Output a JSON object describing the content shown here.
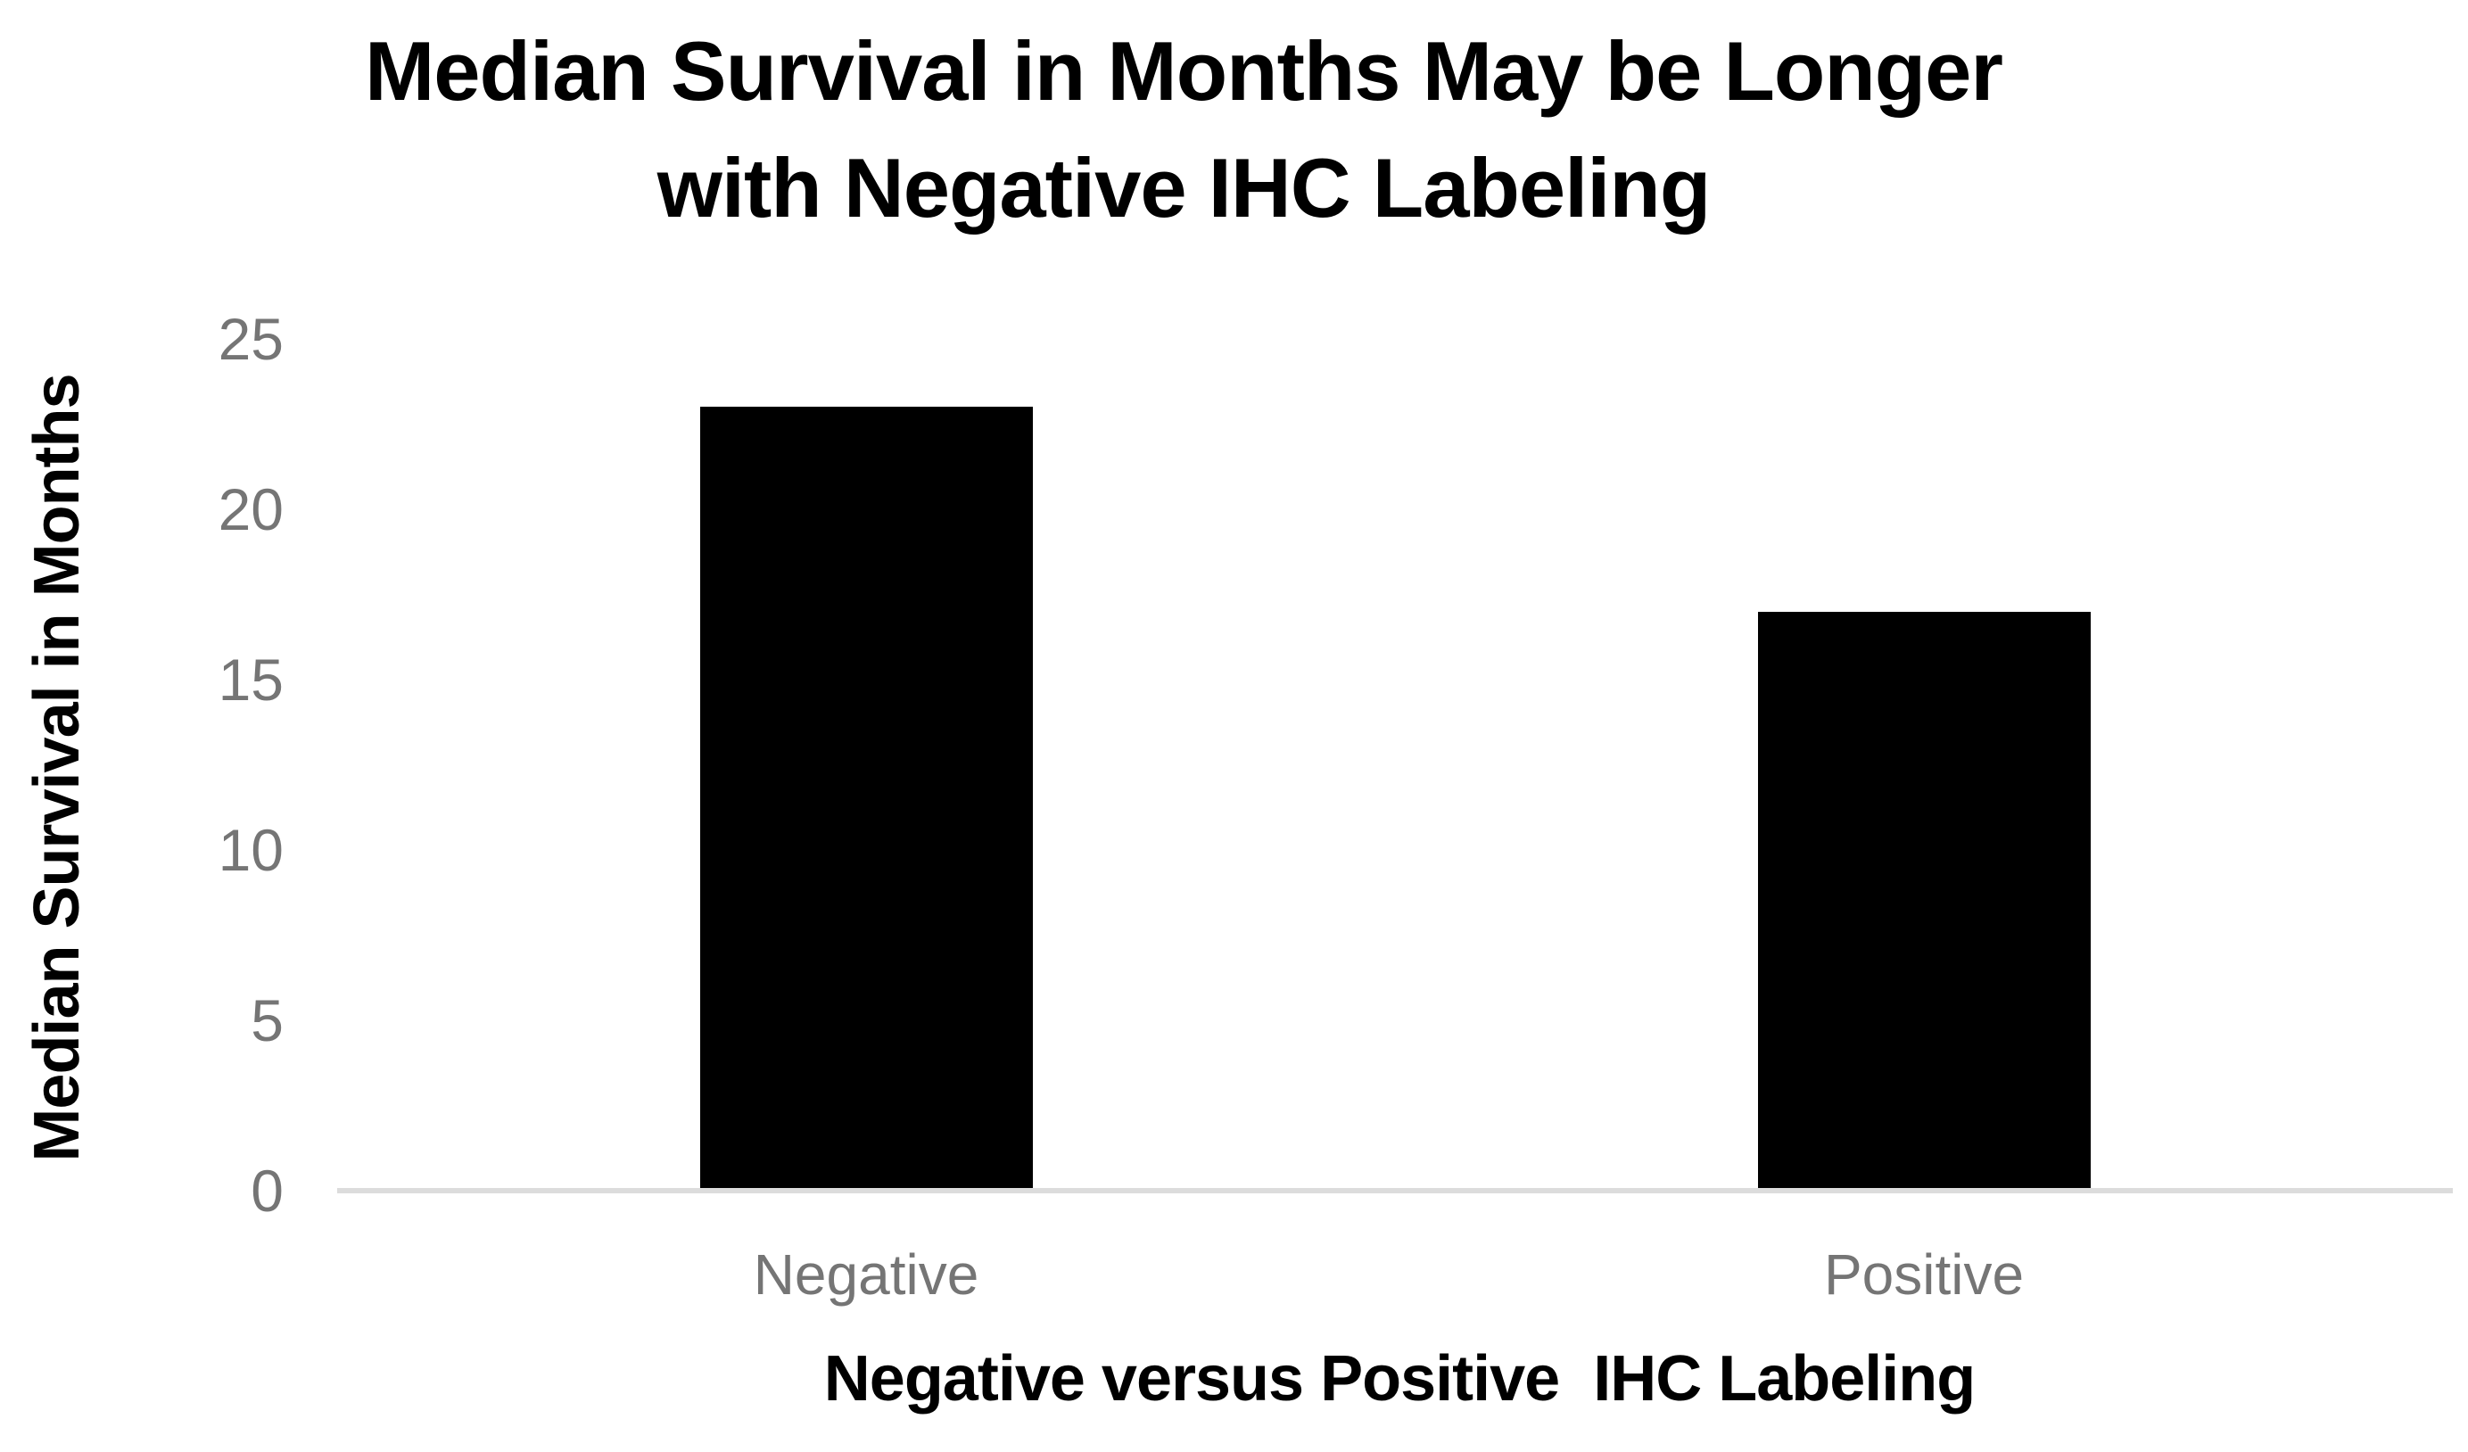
{
  "chart_data": {
    "type": "bar",
    "title": "Median Survival in Months May be Longer with Negative IHC Labeling",
    "title_lines": [
      "Median Survival in Months May be Longer",
      "with Negative IHC Labeling"
    ],
    "categories": [
      "Negative",
      "Positive"
    ],
    "values": [
      23,
      17
    ],
    "series": [
      {
        "name": "Median Survival in Months",
        "values": [
          23,
          17
        ]
      }
    ],
    "xlabel": "Negative versus Positive  IHC Labeling",
    "ylabel": "Median Survival in Months",
    "ylim": [
      0,
      25
    ],
    "yticks": [
      25,
      20,
      15,
      10,
      5,
      0
    ],
    "grid": false,
    "legend": false,
    "colors": {
      "bar": "#000000",
      "title_text": "#000000",
      "axis_title_text": "#000000",
      "tick_label": "#757575",
      "axis_line": "#dcdcdc",
      "background": "#ffffff"
    }
  }
}
